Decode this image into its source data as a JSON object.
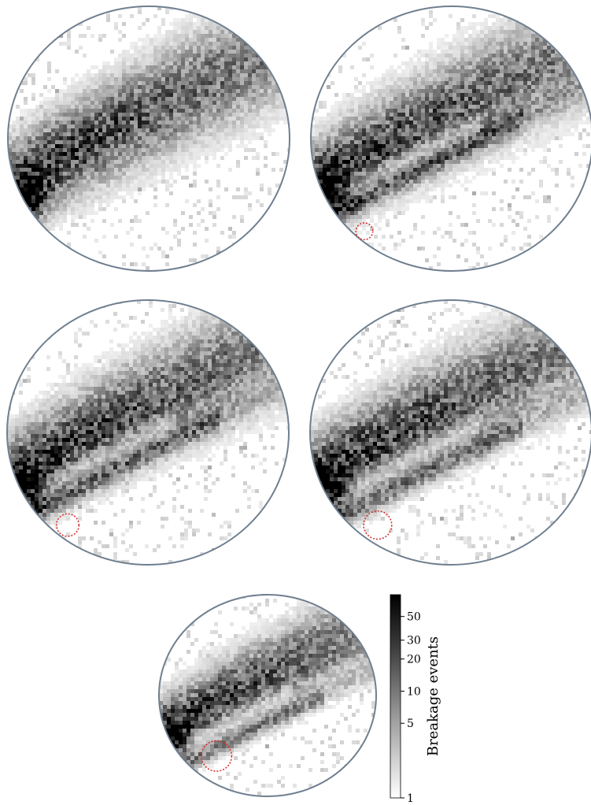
{
  "chart_data": {
    "type": "heatmap",
    "description_color_scale": "log",
    "colormap": [
      "#ffffff",
      "#000000"
    ],
    "outline_color": "#6f7f8f",
    "marker_color": "#d62728",
    "colorbar": {
      "label": "Breakage events",
      "scale": "log",
      "range": [
        1,
        80
      ],
      "ticks": [
        1,
        5,
        10,
        20,
        30,
        50
      ],
      "tick_labels": [
        "1",
        "5",
        "10",
        "20",
        "30",
        "50"
      ]
    },
    "panels": [
      {
        "id": 1,
        "has_marker": false,
        "marker_size": 0,
        "ridge_gap": 0.0
      },
      {
        "id": 2,
        "has_marker": true,
        "marker_size": 0.06,
        "ridge_gap": 0.05
      },
      {
        "id": 3,
        "has_marker": true,
        "marker_size": 0.08,
        "ridge_gap": 0.12
      },
      {
        "id": 4,
        "has_marker": true,
        "marker_size": 0.1,
        "ridge_gap": 0.2
      },
      {
        "id": 5,
        "has_marker": true,
        "marker_size": 0.14,
        "ridge_gap": 0.28
      }
    ]
  }
}
